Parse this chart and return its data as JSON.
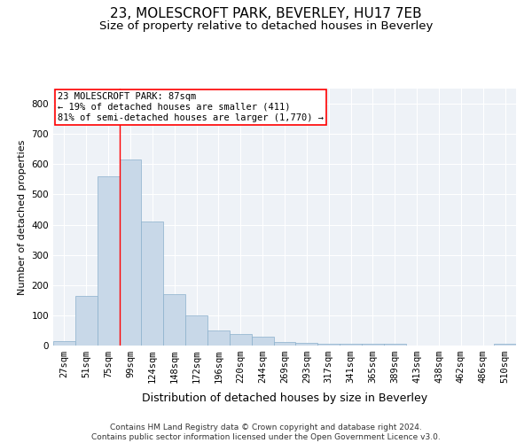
{
  "title": "23, MOLESCROFT PARK, BEVERLEY, HU17 7EB",
  "subtitle": "Size of property relative to detached houses in Beverley",
  "xlabel": "Distribution of detached houses by size in Beverley",
  "ylabel": "Number of detached properties",
  "categories": [
    "27sqm",
    "51sqm",
    "75sqm",
    "99sqm",
    "124sqm",
    "148sqm",
    "172sqm",
    "196sqm",
    "220sqm",
    "244sqm",
    "269sqm",
    "293sqm",
    "317sqm",
    "341sqm",
    "365sqm",
    "389sqm",
    "413sqm",
    "438sqm",
    "462sqm",
    "486sqm",
    "510sqm"
  ],
  "values": [
    15,
    165,
    560,
    615,
    410,
    170,
    100,
    50,
    38,
    28,
    12,
    10,
    7,
    5,
    5,
    5,
    0,
    0,
    0,
    0,
    5
  ],
  "bar_color": "#c8d8e8",
  "bar_edge_color": "#8ab0cc",
  "annotation_text": "23 MOLESCROFT PARK: 87sqm\n← 19% of detached houses are smaller (411)\n81% of semi-detached houses are larger (1,770) →",
  "annotation_box_color": "white",
  "annotation_box_edge_color": "red",
  "vline_color": "red",
  "vline_x": 2.5,
  "ylim": [
    0,
    850
  ],
  "yticks": [
    0,
    100,
    200,
    300,
    400,
    500,
    600,
    700,
    800
  ],
  "footer_line1": "Contains HM Land Registry data © Crown copyright and database right 2024.",
  "footer_line2": "Contains public sector information licensed under the Open Government Licence v3.0.",
  "title_fontsize": 11,
  "subtitle_fontsize": 9.5,
  "xlabel_fontsize": 9,
  "ylabel_fontsize": 8,
  "tick_fontsize": 7.5,
  "annotation_fontsize": 7.5,
  "footer_fontsize": 6.5,
  "background_color": "#eef2f7"
}
